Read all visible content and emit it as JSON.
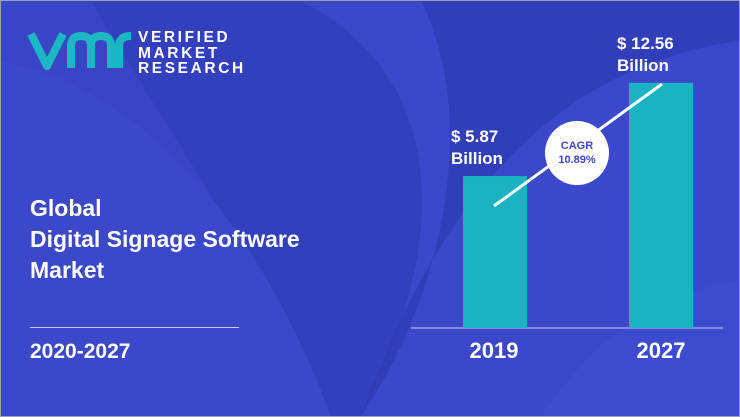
{
  "brand": {
    "line1": "VERIFIED",
    "line2": "MARKET",
    "line3": "RESEARCH",
    "logo_mark": "vmr",
    "logo_color": "#1bb8c4"
  },
  "title": {
    "line1": "Global",
    "line2": "Digital Signage Software",
    "line3": "Market"
  },
  "period": "2020-2027",
  "colors": {
    "background": "#3b48c9",
    "shape": "#3340bd",
    "bar": "#1bb3c0"
  },
  "chart_data": {
    "type": "bar",
    "categories": [
      "2019",
      "2027"
    ],
    "values": [
      5.87,
      12.56
    ],
    "value_labels": [
      {
        "amount": "$ 5.87",
        "unit": "Billion"
      },
      {
        "amount": "$ 12.56",
        "unit": "Billion"
      }
    ],
    "annotation": {
      "label": "CAGR",
      "value": "10.89%"
    },
    "grid": false
  }
}
